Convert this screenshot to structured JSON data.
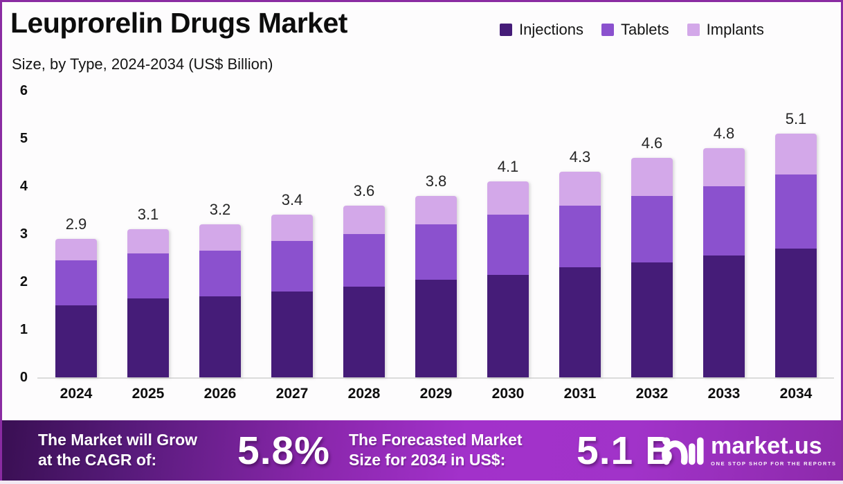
{
  "header": {
    "title": "Leuprorelin Drugs Market",
    "subtitle": "Size, by Type, 2024-2034 (US$ Billion)"
  },
  "legend": [
    {
      "label": "Injections",
      "color": "#451C78"
    },
    {
      "label": "Tablets",
      "color": "#8B51CE"
    },
    {
      "label": "Implants",
      "color": "#D3A8E9"
    }
  ],
  "chart_data": {
    "type": "bar",
    "stacked": true,
    "title": "Leuprorelin Drugs Market Size, by Type, 2024-2034 (US$ Billion)",
    "categories": [
      "2024",
      "2025",
      "2026",
      "2027",
      "2028",
      "2029",
      "2030",
      "2031",
      "2032",
      "2033",
      "2034"
    ],
    "series": [
      {
        "name": "Injections",
        "color": "#451C78",
        "values": [
          1.5,
          1.65,
          1.7,
          1.8,
          1.9,
          2.05,
          2.15,
          2.3,
          2.4,
          2.55,
          2.7
        ]
      },
      {
        "name": "Tablets",
        "color": "#8B51CE",
        "values": [
          0.95,
          0.95,
          0.95,
          1.05,
          1.1,
          1.15,
          1.25,
          1.3,
          1.4,
          1.45,
          1.55
        ]
      },
      {
        "name": "Implants",
        "color": "#D3A8E9",
        "values": [
          0.45,
          0.5,
          0.55,
          0.55,
          0.6,
          0.6,
          0.7,
          0.7,
          0.8,
          0.8,
          0.85
        ]
      }
    ],
    "totals": [
      "2.9",
      "3.1",
      "3.2",
      "3.4",
      "3.6",
      "3.8",
      "4.1",
      "4.3",
      "4.6",
      "4.8",
      "5.1"
    ],
    "xlabel": "",
    "ylabel": "",
    "ylim": [
      0,
      6
    ],
    "yticks": [
      "0",
      "1",
      "2",
      "3",
      "4",
      "5",
      "6"
    ],
    "grid": false,
    "legend_position": "top-right"
  },
  "banner": {
    "cagr_label": "The Market will Grow\nat the CAGR of:",
    "cagr_value": "5.8%",
    "forecast_label": "The Forecasted Market\nSize for 2034 in US$:",
    "forecast_value": "5.1 B",
    "brand": {
      "name": "market.us",
      "tagline": "ONE STOP SHOP FOR THE REPORTS"
    }
  }
}
